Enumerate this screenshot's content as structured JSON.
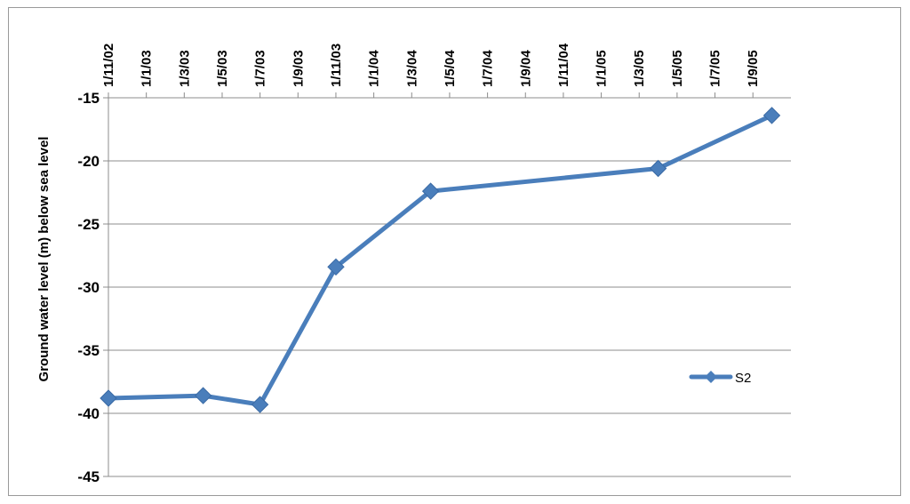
{
  "chart_data": {
    "type": "line",
    "title": "",
    "xlabel": "",
    "ylabel": "Ground water level (m) below sea level",
    "ylim": [
      -45,
      -15
    ],
    "y_ticks": [
      -15,
      -20,
      -25,
      -30,
      -35,
      -40,
      -45
    ],
    "x_axis_position": "top",
    "x_axis_scale": "date",
    "x_tick_labels": [
      "1/11/02",
      "1/1/03",
      "1/3/03",
      "1/5/03",
      "1/7/03",
      "1/9/03",
      "1/11/03",
      "1/1/04",
      "1/3/04",
      "1/5/04",
      "1/7/04",
      "1/9/04",
      "1/11/04",
      "1/1/05",
      "1/3/05",
      "1/5/05",
      "1/7/05",
      "1/9/05"
    ],
    "grid": "horizontal",
    "legend": "right",
    "series": [
      {
        "name": "S2",
        "color": "#4a7ebb",
        "marker": "diamond",
        "points": [
          {
            "x": "1/11/02",
            "y": -38.8
          },
          {
            "x": "1/4/03",
            "y": -38.6
          },
          {
            "x": "1/7/03",
            "y": -39.3
          },
          {
            "x": "1/11/03",
            "y": -28.4
          },
          {
            "x": "1/4/04",
            "y": -22.4
          },
          {
            "x": "1/4/05",
            "y": -20.6
          },
          {
            "x": "1/10/05",
            "y": -16.4
          }
        ]
      }
    ]
  }
}
